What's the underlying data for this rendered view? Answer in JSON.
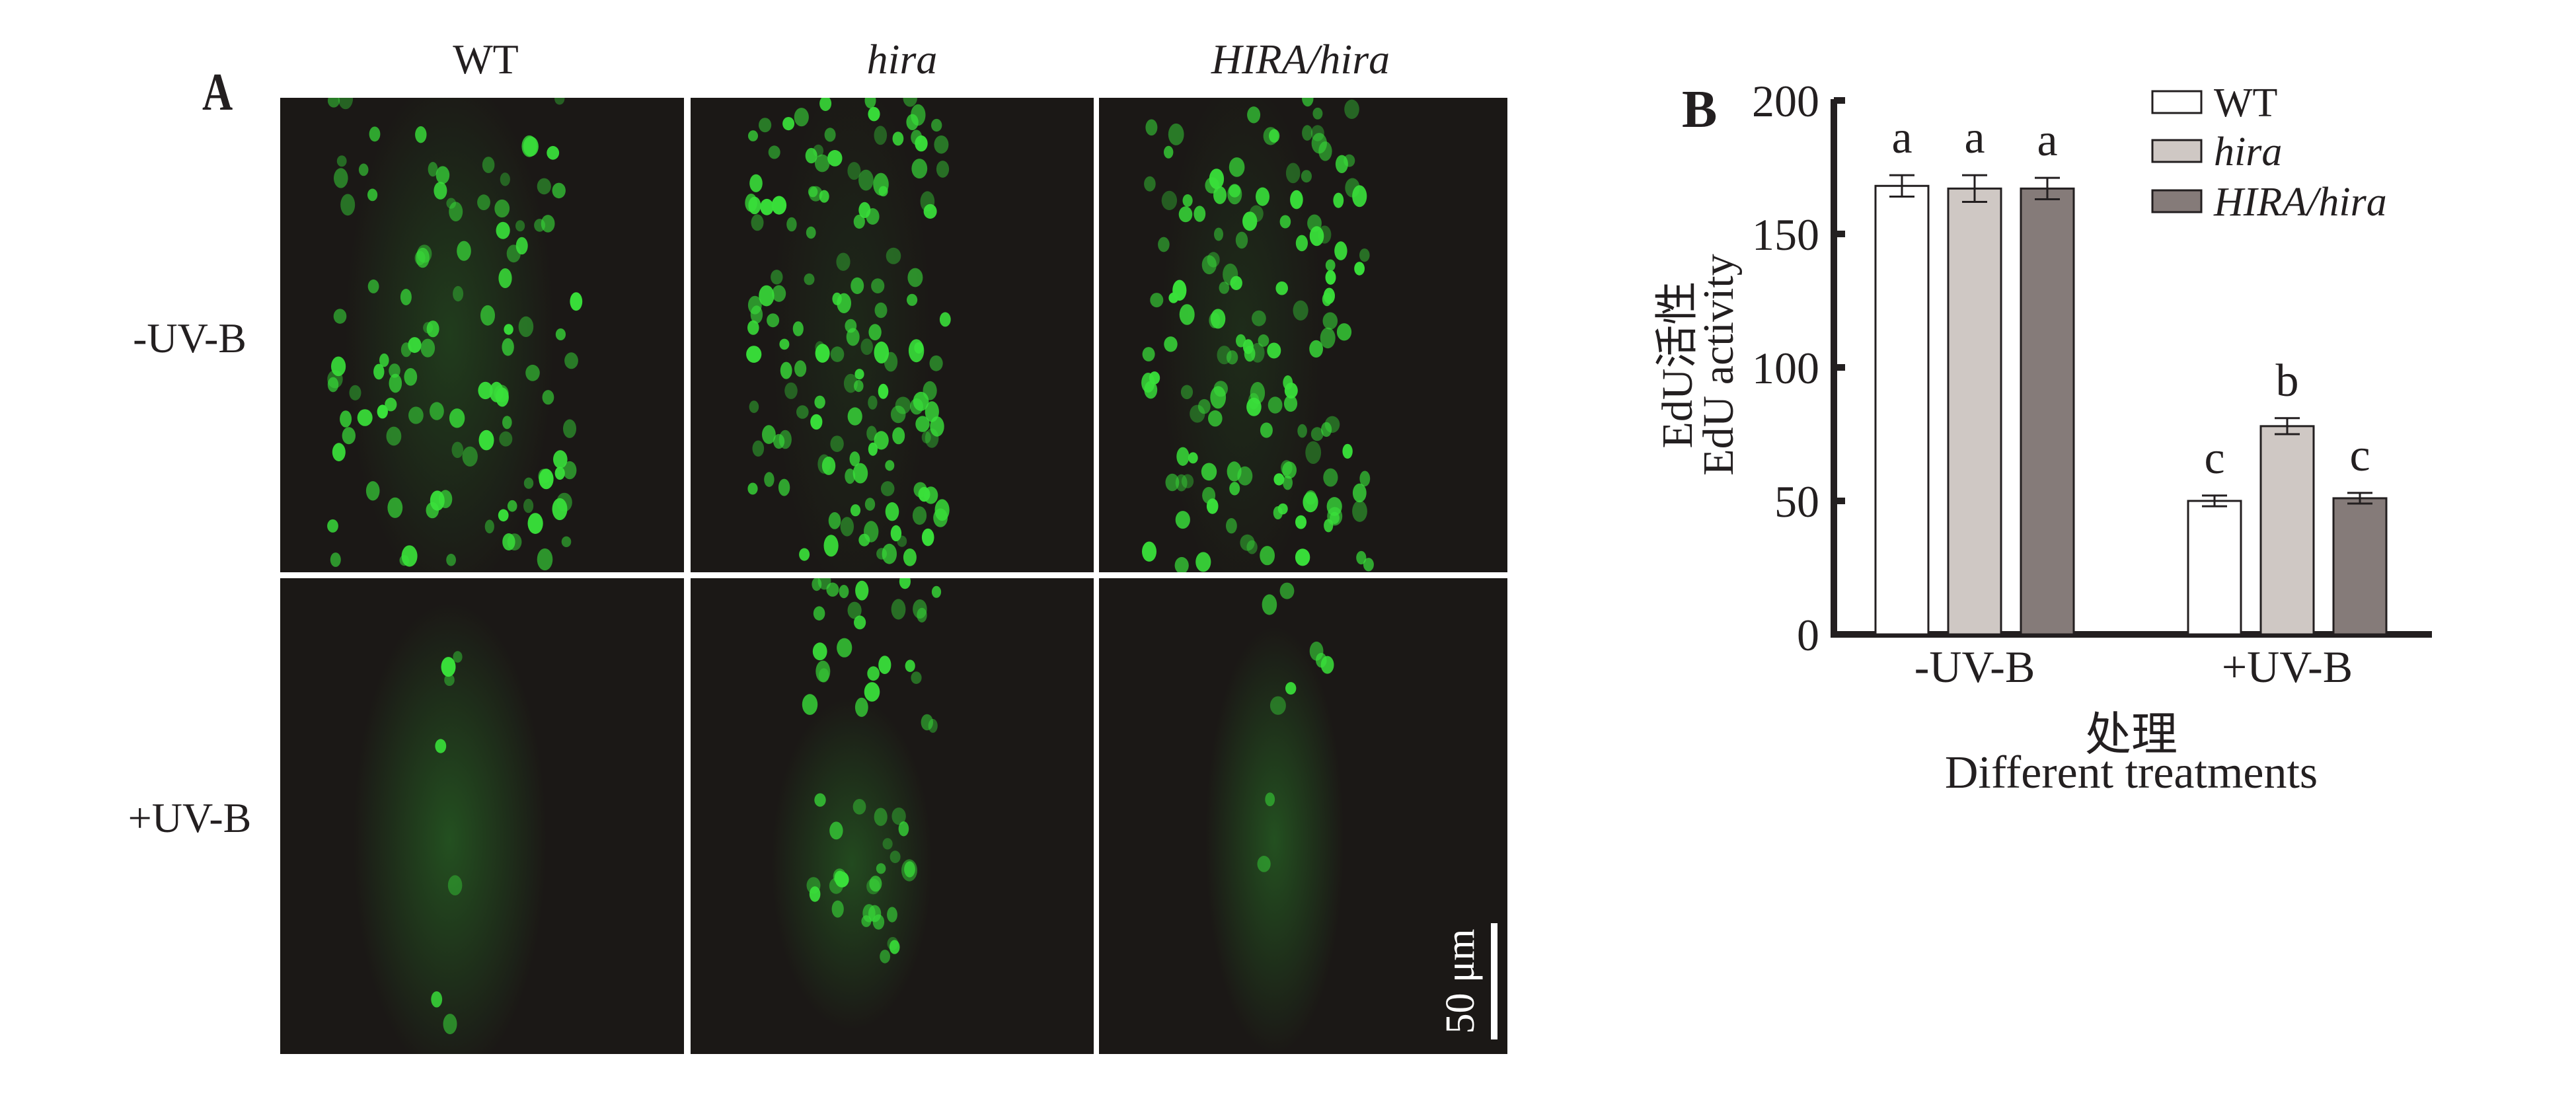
{
  "panel_a": {
    "label": "A",
    "columns": [
      "WT",
      "hira",
      "HIRA/hira"
    ],
    "rows": [
      "-UV-B",
      "+UV-B"
    ],
    "scale_bar": "50 μm",
    "colors": {
      "background": "#1b1816",
      "signal": "#39e03a"
    }
  },
  "chart_data": {
    "type": "bar",
    "panel_label": "B",
    "categories": [
      "-UV-B",
      "+UV-B"
    ],
    "series": [
      {
        "name": "WT",
        "values": [
          168,
          50
        ],
        "errors": [
          4,
          2
        ],
        "letters": [
          "a",
          "c"
        ],
        "color": "#ffffff",
        "italic": false
      },
      {
        "name": "hira",
        "values": [
          167,
          78
        ],
        "errors": [
          5,
          3
        ],
        "letters": [
          "a",
          "b"
        ],
        "color": "#cfc8c4",
        "italic": true
      },
      {
        "name": "HIRA/hira",
        "values": [
          167,
          51
        ],
        "errors": [
          4,
          2
        ],
        "letters": [
          "a",
          "c"
        ],
        "color": "#857b79",
        "italic": true
      }
    ],
    "ylabel": [
      "EdU活性",
      "EdU activity"
    ],
    "xlabel": [
      "处理",
      "Different treatments"
    ],
    "ylim": [
      0,
      200
    ],
    "yticks": [
      0,
      50,
      100,
      150,
      200
    ],
    "grid": false,
    "legend": "top-right"
  }
}
